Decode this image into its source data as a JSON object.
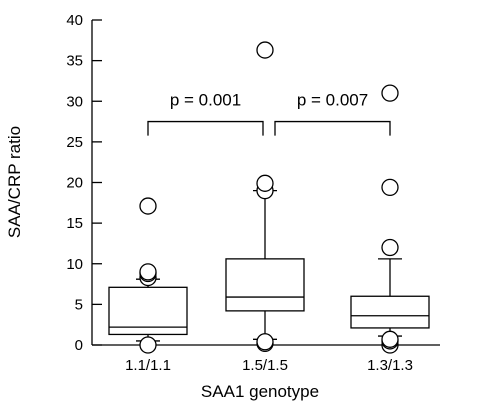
{
  "chart_data": {
    "type": "box",
    "title": "",
    "xlabel": "SAA1 genotype",
    "ylabel": "SAA/CRP ratio",
    "ylim": [
      0,
      40
    ],
    "yticks": [
      0,
      5,
      10,
      15,
      20,
      25,
      30,
      35,
      40
    ],
    "ytick_labels": [
      "0",
      "5",
      "10",
      "15",
      "20",
      "25",
      "30",
      "35",
      "40"
    ],
    "grid": false,
    "categories": [
      "1.1/1.1",
      "1.5/1.5",
      "1.3/1.3"
    ],
    "boxes": [
      {
        "category": "1.1/1.1",
        "whisker_low": 0.5,
        "q1": 1.3,
        "median": 2.2,
        "q3": 7.1,
        "whisker_high": 8.1,
        "outliers": [
          0.0,
          8.3,
          8.8,
          9.0,
          17.1
        ]
      },
      {
        "category": "1.5/1.5",
        "whisker_low": 0.7,
        "q1": 4.2,
        "median": 5.9,
        "q3": 10.6,
        "whisker_high": 19.0,
        "outliers": [
          0.2,
          0.4,
          19.0,
          19.9,
          36.3
        ]
      },
      {
        "category": "1.3/1.3",
        "whisker_low": 1.1,
        "q1": 2.1,
        "median": 3.6,
        "q3": 6.0,
        "whisker_high": 10.6,
        "outliers": [
          0.0,
          0.5,
          0.7,
          12.0,
          19.4,
          31.0
        ]
      }
    ],
    "annotations": [
      {
        "text": "p = 0.001",
        "from": "1.1/1.1",
        "to": "1.5/1.5",
        "y": 27.5
      },
      {
        "text": "p = 0.007",
        "from": "1.5/1.5",
        "to": "1.3/1.3",
        "y": 27.5
      }
    ]
  }
}
